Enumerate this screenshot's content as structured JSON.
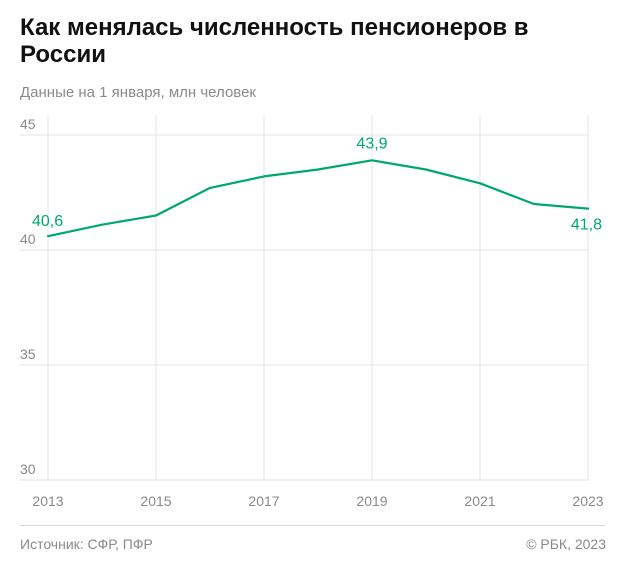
{
  "header": {
    "title": "Как менялась численность пенсионеров в России",
    "subtitle": "Данные на 1 января, млн человек"
  },
  "footer": {
    "source": "Источник: СФР, ПФР",
    "credit": "© РБК, 2023"
  },
  "colors": {
    "line": "#00a86b",
    "grid": "#e3e3e3",
    "tick_text": "#8a8a8a"
  },
  "chart_data": {
    "type": "line",
    "title": "Как менялась численность пенсионеров в России",
    "subtitle": "Данные на 1 января, млн человек",
    "xlabel": "",
    "ylabel": "",
    "xlim": [
      2013,
      2023
    ],
    "ylim": [
      30,
      45
    ],
    "x_ticks": [
      "2013",
      "2015",
      "2017",
      "2019",
      "2021",
      "2023"
    ],
    "y_ticks": [
      "30",
      "35",
      "40",
      "45"
    ],
    "grid": true,
    "x": [
      2013,
      2014,
      2015,
      2016,
      2017,
      2018,
      2019,
      2020,
      2021,
      2022,
      2023
    ],
    "series": [
      {
        "values": [
          40.6,
          41.1,
          41.5,
          42.7,
          43.2,
          43.5,
          43.9,
          43.5,
          42.9,
          42.0,
          41.8
        ]
      }
    ],
    "annotations": [
      {
        "x": 2013,
        "y": 40.6,
        "text": "40,6"
      },
      {
        "x": 2019,
        "y": 43.9,
        "text": "43,9"
      },
      {
        "x": 2023,
        "y": 41.8,
        "text": "41,8"
      }
    ]
  }
}
